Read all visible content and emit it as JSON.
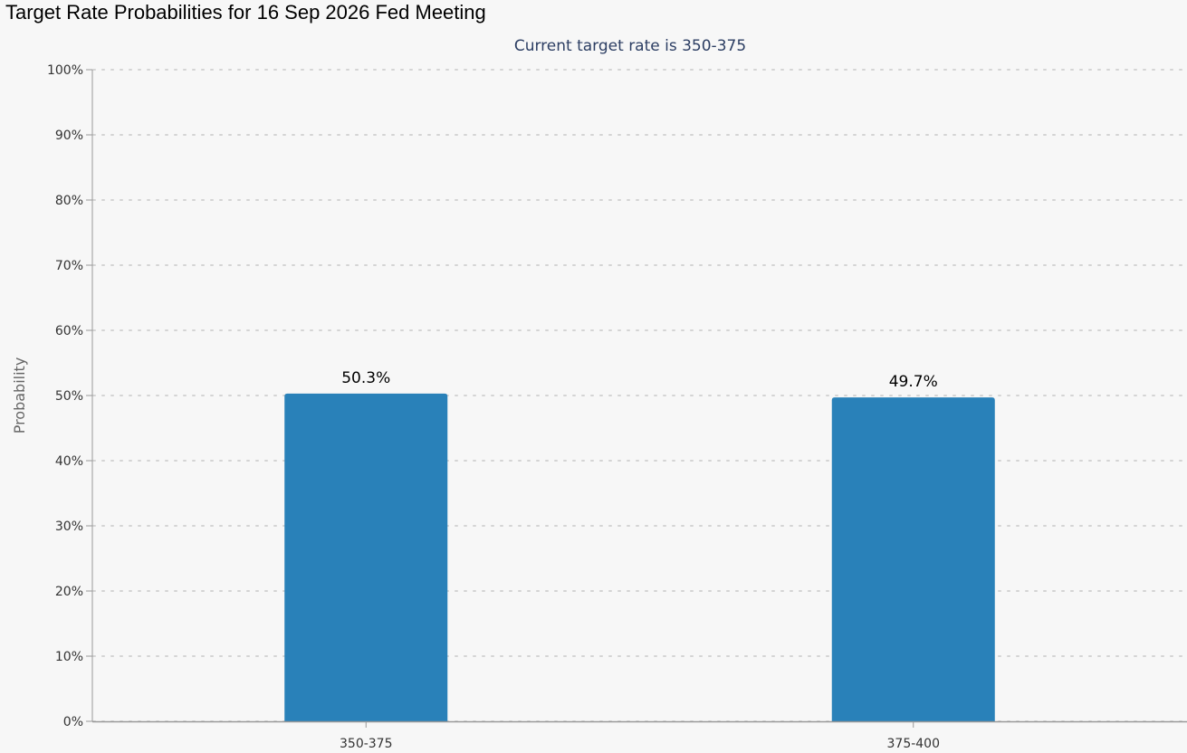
{
  "page": {
    "title": "Target Rate Probabilities for 16 Sep 2026 Fed Meeting"
  },
  "chart_data": {
    "type": "bar",
    "title": "Target Rate Probabilities for 16 Sep 2026 Fed Meeting",
    "subtitle": "Current target rate is 350-375",
    "xlabel": "",
    "ylabel": "Probability",
    "categories": [
      "350-375",
      "375-400"
    ],
    "values": [
      50.3,
      49.7
    ],
    "data_labels": [
      "50.3%",
      "49.7%"
    ],
    "ylim": [
      0,
      100
    ],
    "yticks": [
      0,
      10,
      20,
      30,
      40,
      50,
      60,
      70,
      80,
      90,
      100
    ],
    "ytick_labels": [
      "0%",
      "10%",
      "20%",
      "30%",
      "40%",
      "50%",
      "60%",
      "70%",
      "80%",
      "90%",
      "100%"
    ],
    "grid": true,
    "legend": "none",
    "colors": {
      "bar": "#2981b9",
      "grid": "#d4d4d4",
      "axis": "#999999",
      "background": "#f7f7f7"
    }
  }
}
